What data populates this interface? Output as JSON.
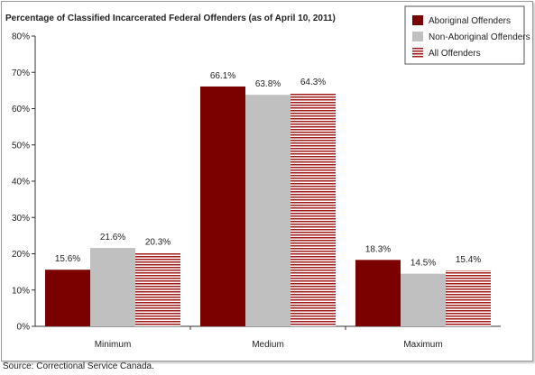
{
  "chart_data": {
    "type": "bar",
    "title": "Percentage of Classified Incarcerated Federal Offenders (as of April 10, 2011)",
    "categories": [
      "Minimum",
      "Medium",
      "Maximum"
    ],
    "series": [
      {
        "name": "Aboriginal Offenders",
        "values": [
          15.6,
          66.1,
          18.3
        ],
        "labels": [
          "15.6%",
          "66.1%",
          "18.3%"
        ],
        "color": "#7b0000",
        "pattern": "solid"
      },
      {
        "name": "Non-Aboriginal Offenders",
        "values": [
          21.6,
          63.8,
          14.5
        ],
        "labels": [
          "21.6%",
          "63.8%",
          "14.5%"
        ],
        "color": "#c0c0c0",
        "pattern": "solid"
      },
      {
        "name": "All Offenders",
        "values": [
          20.3,
          64.3,
          15.4
        ],
        "labels": [
          "20.3%",
          "64.3%",
          "15.4%"
        ],
        "color": "#a01a1a",
        "pattern": "horizontal-stripes"
      }
    ],
    "yticks": [
      "0%",
      "10%",
      "20%",
      "30%",
      "40%",
      "50%",
      "60%",
      "70%",
      "80%"
    ],
    "ylim": [
      0,
      80
    ],
    "grid": false,
    "legend_position": "top-right"
  },
  "source": "Source:  Correctional Service Canada."
}
